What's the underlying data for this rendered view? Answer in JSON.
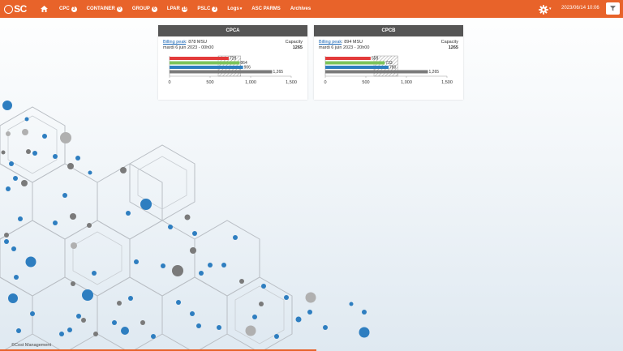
{
  "app": {
    "logo_text": "SC"
  },
  "nav": [
    {
      "label": "CPC",
      "badge": "3"
    },
    {
      "label": "CONTAINER",
      "badge": "0"
    },
    {
      "label": "GROUP",
      "badge": "6"
    },
    {
      "label": "LPAR",
      "badge": "15"
    },
    {
      "label": "PSLC",
      "badge": "3"
    },
    {
      "label": "Logs",
      "caret": "▾"
    },
    {
      "label": "ASC PARMS"
    },
    {
      "label": "Archives"
    }
  ],
  "header": {
    "datetime": "2023/06/14 10:06",
    "gear_caret": "▾"
  },
  "colors": {
    "brand": "#e8632a",
    "red": "#e33b3b",
    "green": "#7cc35a",
    "blue": "#2e7ec0",
    "gray": "#7a7a7a"
  },
  "panels": [
    {
      "title": "CPCA",
      "billing_label": "Billing peak",
      "billing_value": ": 878 MSU",
      "date": "mardi 6 juin 2023 - 00h00",
      "capacity_label": "Capacity",
      "capacity_value": "1265",
      "chart_data": {
        "type": "bar",
        "orientation": "horizontal",
        "series": [
          {
            "color": "red",
            "value": 729
          },
          {
            "color": "green",
            "value": 864
          },
          {
            "color": "blue",
            "value": 906
          },
          {
            "color": "gray",
            "value": 1265
          }
        ],
        "value_labels": [
          "729",
          "864",
          "906",
          "1,265"
        ],
        "hatched_range": [
          600,
          878
        ],
        "xlim": [
          0,
          1500
        ],
        "ticks": [
          "0",
          "500",
          "1,000",
          "1,500"
        ]
      }
    },
    {
      "title": "CPCB",
      "billing_label": "Billing peak",
      "billing_value": ": 894 MSU",
      "date": "mardi 6 juin 2023 - 20h00",
      "capacity_label": "Capacity",
      "capacity_value": "1265",
      "chart_data": {
        "type": "bar",
        "orientation": "horizontal",
        "series": [
          {
            "color": "red",
            "value": 559
          },
          {
            "color": "green",
            "value": 733
          },
          {
            "color": "blue",
            "value": 780
          },
          {
            "color": "gray",
            "value": 1265
          }
        ],
        "value_labels": [
          "559",
          "733",
          "780",
          "1,265"
        ],
        "hatched_range": [
          600,
          894
        ],
        "xlim": [
          0,
          1500
        ],
        "ticks": [
          "0",
          "500",
          "1,000",
          "1,500"
        ]
      }
    }
  ],
  "footer": {
    "text": "©Cost Management"
  }
}
